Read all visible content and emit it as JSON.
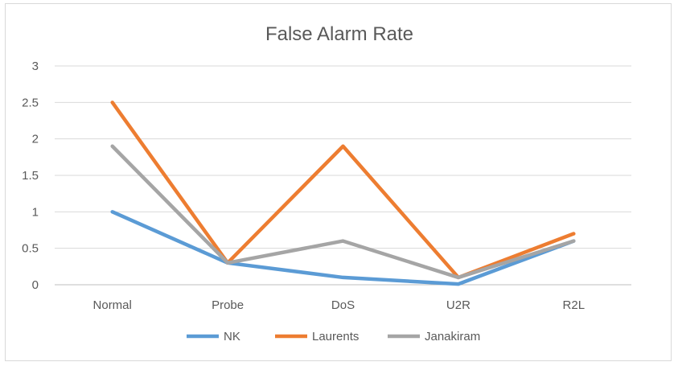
{
  "chart_data": {
    "type": "line",
    "title": "False Alarm Rate",
    "categories": [
      "Normal",
      "Probe",
      "DoS",
      "U2R",
      "R2L"
    ],
    "ylim": [
      0,
      3
    ],
    "yticks": [
      "0",
      "0.5",
      "1",
      "1.5",
      "2",
      "2.5",
      "3"
    ],
    "grid": true,
    "legend_position": "bottom",
    "series": [
      {
        "name": "NK",
        "color": "#5b9bd5",
        "values": [
          1.0,
          0.3,
          0.1,
          0.01,
          0.6
        ]
      },
      {
        "name": "Laurents",
        "color": "#ed7d31",
        "values": [
          2.5,
          0.3,
          1.9,
          0.1,
          0.7
        ]
      },
      {
        "name": "Janakiram",
        "color": "#a5a5a5",
        "values": [
          1.9,
          0.3,
          0.6,
          0.1,
          0.6
        ]
      }
    ]
  }
}
